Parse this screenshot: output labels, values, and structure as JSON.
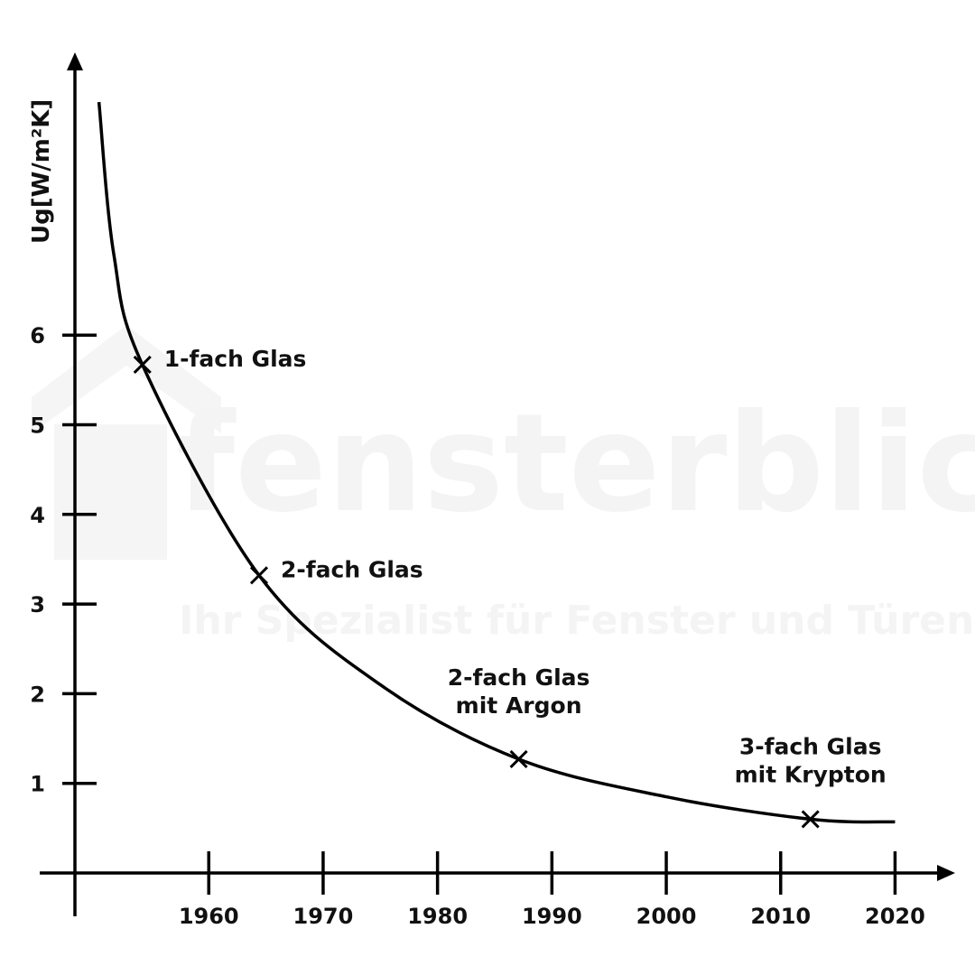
{
  "chart_data": {
    "type": "line",
    "title": "",
    "xlabel": "",
    "ylabel": "Ug[W/m²K]",
    "xlim": [
      1948.3,
      2024.5
    ],
    "ylim": [
      0,
      9
    ],
    "x_ticks": [
      1960,
      1970,
      1980,
      1990,
      2000,
      2010,
      2020
    ],
    "y_ticks": [
      1,
      2,
      3,
      4,
      5,
      6
    ],
    "grid": false,
    "legend": "none",
    "curve": {
      "x": [
        1950.4,
        1951.7,
        1954.2,
        1964.4,
        1975,
        1987.1,
        2000,
        2012.6,
        2020
      ],
      "y": [
        8.6,
        6.9,
        5.67,
        3.32,
        2.1,
        1.27,
        0.85,
        0.6,
        0.57
      ]
    },
    "points": [
      {
        "x": 1954.2,
        "y": 5.67,
        "label": [
          "1-fach Glas"
        ]
      },
      {
        "x": 1964.4,
        "y": 3.32,
        "label": [
          "2-fach Glas"
        ]
      },
      {
        "x": 1987.1,
        "y": 1.27,
        "label": [
          "2-fach Glas",
          "mit Argon"
        ]
      },
      {
        "x": 2012.6,
        "y": 0.6,
        "label": [
          "3-fach Glas",
          "mit Krypton"
        ]
      }
    ],
    "line_color": "#000000"
  },
  "watermark": {
    "brand": "fensterblick",
    "tagline": "Ihr Spezialist für Fenster und Türen"
  }
}
